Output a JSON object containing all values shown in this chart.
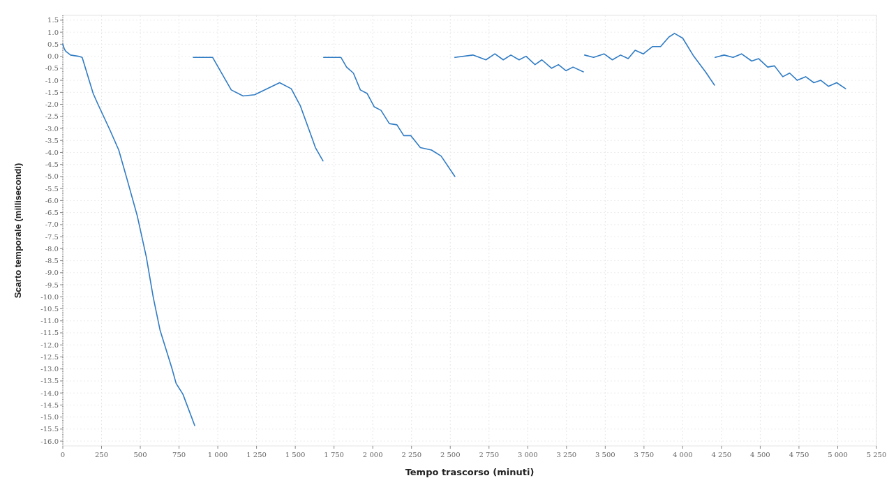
{
  "chart_data": {
    "type": "line",
    "xlabel": "Tempo trascorso (minuti)",
    "ylabel": "Scarto temporale (millisecondi)",
    "xlim": [
      0,
      5250
    ],
    "ylim": [
      -16.2,
      1.7
    ],
    "xticks": [
      0,
      250,
      500,
      750,
      {
        "value": 1000,
        "label": "1 000"
      },
      {
        "value": 1250,
        "label": "1 250"
      },
      {
        "value": 1500,
        "label": "1 500"
      },
      {
        "value": 1750,
        "label": "1 750"
      },
      {
        "value": 2000,
        "label": "2 000"
      },
      {
        "value": 2250,
        "label": "2 250"
      },
      {
        "value": 2500,
        "label": "2 500"
      },
      {
        "value": 2750,
        "label": "2 750"
      },
      {
        "value": 3000,
        "label": "3 000"
      },
      {
        "value": 3250,
        "label": "3 250"
      },
      {
        "value": 3500,
        "label": "3 500"
      },
      {
        "value": 3750,
        "label": "3 750"
      },
      {
        "value": 4000,
        "label": "4 000"
      },
      {
        "value": 4250,
        "label": "4 250"
      },
      {
        "value": 4500,
        "label": "4 500"
      },
      {
        "value": 4750,
        "label": "4 750"
      },
      {
        "value": 5000,
        "label": "5 000"
      },
      {
        "value": 5250,
        "label": "5 250"
      }
    ],
    "yticks": [
      1.5,
      {
        "value": 1,
        "label": "1.0"
      },
      0.5,
      {
        "value": 0,
        "label": "0.0"
      },
      -0.5,
      {
        "value": -1,
        "label": "-1.0"
      },
      -1.5,
      {
        "value": -2,
        "label": "-2.0"
      },
      -2.5,
      {
        "value": -3,
        "label": "-3.0"
      },
      -3.5,
      {
        "value": -4,
        "label": "-4.0"
      },
      -4.5,
      {
        "value": -5,
        "label": "-5.0"
      },
      -5.5,
      {
        "value": -6,
        "label": "-6.0"
      },
      -6.5,
      {
        "value": -7,
        "label": "-7.0"
      },
      -7.5,
      {
        "value": -8,
        "label": "-8.0"
      },
      -8.5,
      {
        "value": -9,
        "label": "-9.0"
      },
      -9.5,
      {
        "value": -10,
        "label": "-10.0"
      },
      -10.5,
      {
        "value": -11,
        "label": "-11.0"
      },
      -11.5,
      {
        "value": -12,
        "label": "-12.0"
      },
      -12.5,
      {
        "value": -13,
        "label": "-13.0"
      },
      -13.5,
      {
        "value": -14,
        "label": "-14.0"
      },
      -14.5,
      {
        "value": -15,
        "label": "-15.0"
      },
      -15.5,
      {
        "value": -16,
        "label": "-16.0"
      }
    ],
    "grid": true,
    "series": [
      {
        "color": "#2f7bc4",
        "x": [
          0,
          10,
          20,
          50,
          100,
          125,
          196,
          227,
          303,
          361,
          414,
          481,
          539,
          583,
          628,
          703,
          731,
          775,
          851
        ],
        "values": [
          0.5,
          0.3,
          0.2,
          0.05,
          0.0,
          -0.05,
          -1.55,
          -2.0,
          -3.05,
          -3.9,
          -5.1,
          -6.65,
          -8.35,
          -10.0,
          -11.4,
          -12.95,
          -13.6,
          -14.05,
          -15.35
        ]
      },
      {
        "color": "#2f7bc4",
        "x": [
          842,
          900,
          967,
          1087,
          1163,
          1238,
          1399,
          1474,
          1532,
          1608,
          1630,
          1679
        ],
        "values": [
          -0.05,
          -0.05,
          -0.05,
          -1.4,
          -1.65,
          -1.6,
          -1.1,
          -1.35,
          -2.05,
          -3.4,
          -3.8,
          -4.35
        ]
      },
      {
        "color": "#2f7bc4",
        "x": [
          1683,
          1740,
          1795,
          1831,
          1875,
          1920,
          1964,
          2009,
          2053,
          2107,
          2156,
          2200,
          2245,
          2307,
          2379,
          2441,
          2530
        ],
        "values": [
          -0.05,
          -0.05,
          -0.05,
          -0.45,
          -0.7,
          -1.4,
          -1.55,
          -2.1,
          -2.25,
          -2.8,
          -2.85,
          -3.3,
          -3.3,
          -3.8,
          -3.9,
          -4.15,
          -5.0
        ]
      },
      {
        "color": "#2f7bc4",
        "x": [
          2530,
          2646,
          2730,
          2788,
          2842,
          2891,
          2944,
          2989,
          3047,
          3091,
          3154,
          3198,
          3247,
          3292,
          3359
        ],
        "values": [
          -0.05,
          0.05,
          -0.15,
          0.1,
          -0.15,
          0.05,
          -0.15,
          0.0,
          -0.35,
          -0.15,
          -0.5,
          -0.35,
          -0.6,
          -0.45,
          -0.65
        ]
      },
      {
        "color": "#2f7bc4",
        "x": [
          3367,
          3425,
          3492,
          3546,
          3599,
          3648,
          3693,
          3746,
          3804,
          3857,
          3911,
          3947,
          4000,
          4071,
          4147,
          4205
        ],
        "values": [
          0.05,
          -0.05,
          0.1,
          -0.15,
          0.05,
          -0.1,
          0.25,
          0.1,
          0.4,
          0.4,
          0.8,
          0.95,
          0.75,
          0.0,
          -0.65,
          -1.2
        ]
      },
      {
        "color": "#2f7bc4",
        "x": [
          4209,
          4267,
          4325,
          4379,
          4445,
          4490,
          4548,
          4592,
          4646,
          4690,
          4739,
          4793,
          4846,
          4891,
          4940,
          4993,
          5051
        ],
        "values": [
          -0.05,
          0.05,
          -0.05,
          0.1,
          -0.2,
          -0.1,
          -0.45,
          -0.4,
          -0.85,
          -0.7,
          -1.0,
          -0.85,
          -1.1,
          -1.0,
          -1.25,
          -1.1,
          -1.35
        ]
      }
    ]
  }
}
